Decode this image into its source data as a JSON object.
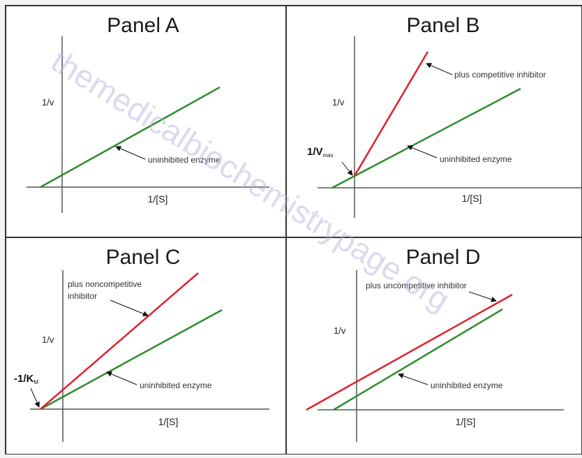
{
  "panels": [
    {
      "title": "Panel A",
      "y_label": "1/v",
      "x_label": "1/[S]",
      "lines": [
        {
          "label": "uninhibited enzyme",
          "color": "#2e8b2e"
        }
      ]
    },
    {
      "title": "Panel B",
      "y_label": "1/v",
      "x_label": "1/[S]",
      "intercept_label": "1/V",
      "intercept_sub": "max",
      "lines": [
        {
          "label": "plus competitive inhibitor",
          "color": "#e0202a"
        },
        {
          "label": "uninhibited enzyme",
          "color": "#2e8b2e"
        }
      ]
    },
    {
      "title": "Panel C",
      "y_label": "1/v",
      "x_label": "1/[S]",
      "intercept_label": "-1/K",
      "intercept_sub": "M",
      "lines": [
        {
          "label_line1": "plus noncompetitive",
          "label_line2": "inhibitor",
          "color": "#e0202a"
        },
        {
          "label": "uninhibited enzyme",
          "color": "#2e8b2e"
        }
      ]
    },
    {
      "title": "Panel D",
      "y_label": "1/v",
      "x_label": "1/[S]",
      "lines": [
        {
          "label": "plus uncompetitive inhibitor",
          "color": "#e0202a"
        },
        {
          "label": "uninhibited enzyme",
          "color": "#2e8b2e"
        }
      ]
    }
  ],
  "watermark": "themedicalbiochemistrypage.org",
  "colors": {
    "inhibited": "#e0202a",
    "uninhibited": "#2e8b2e",
    "axis": "#555555",
    "border": "#333333"
  }
}
